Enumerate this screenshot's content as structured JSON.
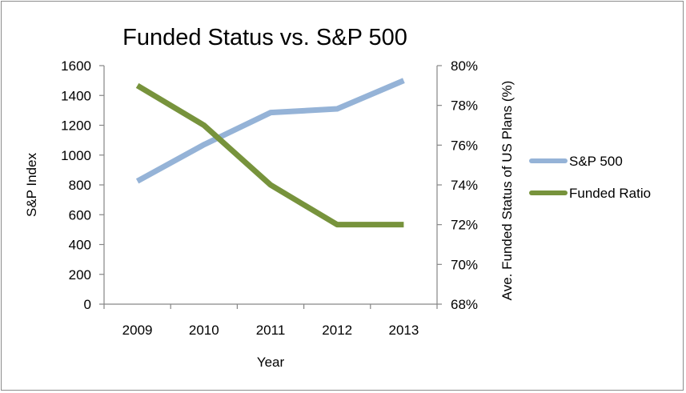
{
  "chart_data": {
    "type": "line",
    "title": "Funded Status vs. S&P 500",
    "xlabel": "Year",
    "ylabel_left": "S&P Index",
    "ylabel_right": "Ave. Funded Status of US Plans (%)",
    "categories": [
      "2009",
      "2010",
      "2011",
      "2012",
      "2013"
    ],
    "ylim_left": [
      0,
      1600
    ],
    "yticks_left": [
      0,
      200,
      400,
      600,
      800,
      1000,
      1200,
      1400,
      1600
    ],
    "ylim_right": [
      68,
      80
    ],
    "yticks_right": [
      "68%",
      "70%",
      "72%",
      "74%",
      "76%",
      "78%",
      "80%"
    ],
    "yticks_right_values": [
      68,
      70,
      72,
      74,
      76,
      78,
      80
    ],
    "grid": false,
    "legend_position": "right",
    "series": [
      {
        "name": "S&P 500",
        "axis": "left",
        "color": "#95B3D7",
        "values": [
          825,
          1070,
          1285,
          1310,
          1500
        ]
      },
      {
        "name": "Funded Ratio",
        "axis": "right",
        "color": "#77933C",
        "values": [
          79,
          77,
          74,
          72,
          72
        ]
      }
    ]
  }
}
